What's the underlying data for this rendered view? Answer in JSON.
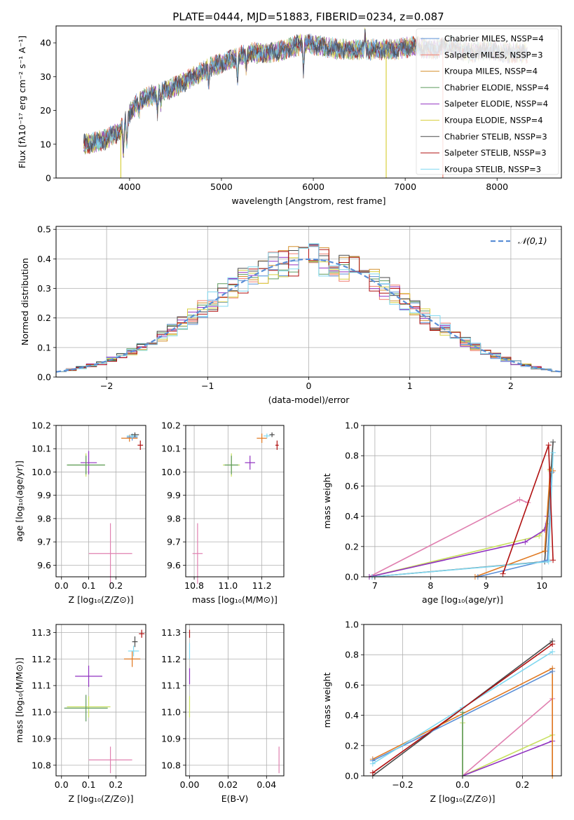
{
  "figure_title": "PLATE=0444, MJD=51883, FIBERID=0234, z=0.087",
  "colors": {
    "cmiles": "#5b8fd6",
    "smiles": "#f07e6e",
    "kmiles": "#d4902e",
    "celodie": "#5e9a5e",
    "selodie": "#9030c0",
    "kelodie": "#d8d040",
    "cstelib": "#4a4a4a",
    "sstelib": "#b01010",
    "kstelib": "#80d8f0",
    "pink": "#e080b0",
    "lime": "#c8e060",
    "orange": "#e07820"
  },
  "chart_data": [
    {
      "id": "spectrum",
      "type": "line",
      "title": "PLATE=0444, MJD=51883, FIBERID=0234, z=0.087",
      "xlabel": "wavelength [Angstrom, rest frame]",
      "ylabel": "Flux [fλ10⁻¹⁷ erg cm⁻² s⁻¹ A⁻¹]",
      "xlim": [
        3200,
        8700
      ],
      "ylim": [
        0,
        45
      ],
      "xticks": [
        4000,
        5000,
        6000,
        7000,
        8000
      ],
      "yticks": [
        0,
        10,
        20,
        30,
        40
      ],
      "grid": false,
      "legend_position": "top-right",
      "legend": [
        "Chabrier MILES, NSSP=4",
        "Salpeter MILES, NSSP=3",
        "Kroupa MILES, NSSP=4",
        "Chabrier ELODIE, NSSP=4",
        "Salpeter ELODIE, NSSP=4",
        "Kroupa ELODIE, NSSP=4",
        "Chabrier STELIB, NSSP=3",
        "Salpeter STELIB, NSSP=3",
        "Kroupa STELIB, NSSP=3"
      ],
      "continuum": {
        "x": [
          3500,
          3700,
          3900,
          4000,
          4100,
          4300,
          4500,
          4700,
          4900,
          5100,
          5300,
          5500,
          5700,
          5900,
          6100,
          6300,
          6500,
          6700,
          6900,
          7100,
          7300,
          7500,
          7700,
          7900,
          8100,
          8300
        ],
        "y": [
          10,
          11,
          14,
          19,
          23,
          25,
          27,
          30,
          33,
          35,
          37,
          37,
          38,
          40,
          39,
          38,
          38,
          38,
          38,
          39,
          38,
          39,
          37,
          38,
          37,
          37
        ]
      },
      "features": [
        {
          "x": 3934,
          "depth": 9
        },
        {
          "x": 3970,
          "depth": 8
        },
        {
          "x": 4102,
          "depth": 4
        },
        {
          "x": 4304,
          "depth": 5
        },
        {
          "x": 4341,
          "depth": 4
        },
        {
          "x": 4861,
          "depth": 4
        },
        {
          "x": 5175,
          "depth": 7
        },
        {
          "x": 5270,
          "depth": 4
        },
        {
          "x": 5893,
          "depth": 8
        },
        {
          "x": 6563,
          "depth": -5
        }
      ],
      "spikes": [
        {
          "x": 6793,
          "series": 5
        },
        {
          "x": 7410,
          "series": 1
        },
        {
          "x": 3905,
          "series": 5
        }
      ]
    },
    {
      "id": "residuals",
      "type": "histogram",
      "xlabel": "(data-model)/error",
      "ylabel": "Normed distribution",
      "xlim": [
        -2.5,
        2.5
      ],
      "ylim": [
        0,
        0.51
      ],
      "xticks": [
        -2,
        -1,
        0,
        1,
        2
      ],
      "yticks": [
        0.0,
        0.1,
        0.2,
        0.3,
        0.4,
        0.5
      ],
      "grid": true,
      "bin_width": 0.1,
      "legend_position": "top-right",
      "legend": [
        "𝒩(0,1)"
      ]
    },
    {
      "id": "age_vs_Z",
      "type": "scatter",
      "xlabel": "Z [log₁₀(Z/Z⊙)]",
      "ylabel": "age  [log₁₀(age/yr)]",
      "xlim": [
        -0.02,
        0.31
      ],
      "ylim": [
        9.55,
        10.2
      ],
      "xticks": [
        0.0,
        0.1,
        0.2
      ],
      "yticks": [
        9.6,
        9.7,
        9.8,
        9.9,
        10.0,
        10.1,
        10.2
      ],
      "grid": true,
      "points": [
        {
          "c": "pink",
          "x": 0.18,
          "y": 9.65,
          "xe": 0.08,
          "ye": 0.13
        },
        {
          "c": "selodie",
          "x": 0.1,
          "y": 10.04,
          "xe": 0.03,
          "ye": 0.05
        },
        {
          "c": "lime",
          "x": 0.09,
          "y": 10.03,
          "xe": 0.07,
          "ye": 0.05
        },
        {
          "c": "celodie",
          "x": 0.09,
          "y": 10.03,
          "xe": 0.07,
          "ye": 0.04
        },
        {
          "c": "orange",
          "x": 0.25,
          "y": 10.145,
          "xe": 0.03,
          "ye": 0.015
        },
        {
          "c": "cmiles",
          "x": 0.26,
          "y": 10.15,
          "xe": 0.02,
          "ye": 0.015
        },
        {
          "c": "kstelib",
          "x": 0.26,
          "y": 10.155,
          "xe": 0.02,
          "ye": 0.01
        },
        {
          "c": "cstelib",
          "x": 0.27,
          "y": 10.16,
          "xe": 0.015,
          "ye": 0.01
        },
        {
          "c": "sstelib",
          "x": 0.29,
          "y": 10.115,
          "xe": 0.01,
          "ye": 0.02
        }
      ]
    },
    {
      "id": "age_vs_mass",
      "type": "scatter",
      "xlabel": "mass [log₁₀(M/M⊙)]",
      "ylabel": "",
      "xlim": [
        10.75,
        11.33
      ],
      "ylim": [
        9.55,
        10.2
      ],
      "xticks": [
        10.8,
        11.0,
        11.2
      ],
      "yticks": [
        9.6,
        9.7,
        9.8,
        9.9,
        10.0,
        10.1,
        10.2
      ],
      "grid": true,
      "points": [
        {
          "c": "pink",
          "x": 10.82,
          "y": 9.65,
          "xe": 0.03,
          "ye": 0.13
        },
        {
          "c": "selodie",
          "x": 11.13,
          "y": 10.04,
          "xe": 0.03,
          "ye": 0.03
        },
        {
          "c": "lime",
          "x": 11.02,
          "y": 10.03,
          "xe": 0.05,
          "ye": 0.05
        },
        {
          "c": "celodie",
          "x": 11.02,
          "y": 10.03,
          "xe": 0.04,
          "ye": 0.04
        },
        {
          "c": "orange",
          "x": 11.2,
          "y": 10.145,
          "xe": 0.03,
          "ye": 0.02
        },
        {
          "c": "kstelib",
          "x": 11.23,
          "y": 10.155,
          "xe": 0.02,
          "ye": 0.01
        },
        {
          "c": "cstelib",
          "x": 11.26,
          "y": 10.16,
          "xe": 0.015,
          "ye": 0.01
        },
        {
          "c": "sstelib",
          "x": 11.29,
          "y": 10.115,
          "xe": 0.01,
          "ye": 0.02
        }
      ]
    },
    {
      "id": "weight_vs_age",
      "type": "line",
      "xlabel": "age  [log₁₀(age/yr)]",
      "ylabel": "mass weight",
      "xlim": [
        6.8,
        10.35
      ],
      "ylim": [
        0,
        1.0
      ],
      "xticks": [
        7,
        8,
        9,
        10
      ],
      "yticks": [
        0.0,
        0.2,
        0.4,
        0.6,
        0.8,
        1.0
      ],
      "grid": true,
      "series": [
        {
          "c": "pink",
          "x": [
            6.9,
            9.6,
            9.75
          ],
          "y": [
            0.0,
            0.51,
            0.49
          ]
        },
        {
          "c": "lime",
          "x": [
            6.9,
            9.95,
            10.1,
            10.15
          ],
          "y": [
            0.0,
            0.27,
            0.35,
            0.7
          ]
        },
        {
          "c": "selodie",
          "x": [
            6.9,
            9.7,
            10.05,
            10.1
          ],
          "y": [
            0.0,
            0.23,
            0.31,
            0.4
          ]
        },
        {
          "c": "cstelib",
          "x": [
            6.95,
            10.05,
            10.2
          ],
          "y": [
            0.0,
            0.1,
            0.89
          ]
        },
        {
          "c": "orange",
          "x": [
            8.8,
            10.05,
            10.15,
            10.2
          ],
          "y": [
            0.0,
            0.17,
            0.71,
            0.7
          ]
        },
        {
          "c": "cmiles",
          "x": [
            8.85,
            10.1,
            10.18
          ],
          "y": [
            0.0,
            0.11,
            0.69
          ]
        },
        {
          "c": "kstelib",
          "x": [
            6.95,
            10.12,
            10.2
          ],
          "y": [
            0.0,
            0.1,
            0.82
          ]
        },
        {
          "c": "sstelib",
          "x": [
            9.3,
            10.12,
            10.2
          ],
          "y": [
            0.02,
            0.87,
            0.11
          ]
        }
      ]
    },
    {
      "id": "mass_vs_Z",
      "type": "scatter",
      "xlabel": "Z [log₁₀(Z/Z⊙)]",
      "ylabel": "mass [log₁₀(M/M⊙)]",
      "xlim": [
        -0.02,
        0.31
      ],
      "ylim": [
        10.76,
        11.33
      ],
      "xticks": [
        0.0,
        0.1,
        0.2
      ],
      "yticks": [
        10.8,
        10.9,
        11.0,
        11.1,
        11.2,
        11.3
      ],
      "grid": true,
      "points": [
        {
          "c": "pink",
          "x": 0.18,
          "y": 10.82,
          "xe": 0.08,
          "ye": 0.05
        },
        {
          "c": "selodie",
          "x": 0.1,
          "y": 11.135,
          "xe": 0.05,
          "ye": 0.04
        },
        {
          "c": "lime",
          "x": 0.1,
          "y": 11.02,
          "xe": 0.08,
          "ye": 0.04
        },
        {
          "c": "celodie",
          "x": 0.09,
          "y": 11.015,
          "xe": 0.08,
          "ye": 0.05
        },
        {
          "c": "orange",
          "x": 0.26,
          "y": 11.2,
          "xe": 0.03,
          "ye": 0.03
        },
        {
          "c": "kstelib",
          "x": 0.265,
          "y": 11.23,
          "xe": 0.02,
          "ye": 0.02
        },
        {
          "c": "cstelib",
          "x": 0.27,
          "y": 11.265,
          "xe": 0.01,
          "ye": 0.02
        },
        {
          "c": "sstelib",
          "x": 0.295,
          "y": 11.295,
          "xe": 0.01,
          "ye": 0.015
        }
      ]
    },
    {
      "id": "mass_vs_ebv",
      "type": "scatter",
      "xlabel": "E(B-V)",
      "ylabel": "",
      "xlim": [
        -0.002,
        0.049
      ],
      "ylim": [
        10.76,
        11.33
      ],
      "xticks": [
        0.0,
        0.02,
        0.04
      ],
      "yticks": [
        10.8,
        10.9,
        11.0,
        11.1,
        11.2,
        11.3
      ],
      "grid": true,
      "points": [
        {
          "c": "pink",
          "x": 0.0465,
          "y": 10.82,
          "xe": 0.0,
          "ye": 0.05
        },
        {
          "c": "lime",
          "x": 0.0,
          "y": 11.02,
          "xe": 0.0,
          "ye": 0.04
        },
        {
          "c": "selodie",
          "x": 0.0,
          "y": 11.135,
          "xe": 0.0,
          "ye": 0.03
        },
        {
          "c": "kstelib",
          "x": 0.0,
          "y": 11.23,
          "xe": 0.0,
          "ye": 0.03
        },
        {
          "c": "sstelib",
          "x": 0.0,
          "y": 11.295,
          "xe": 0.0,
          "ye": 0.015
        }
      ]
    },
    {
      "id": "weight_vs_Z",
      "type": "line",
      "xlabel": "Z [log₁₀(Z/Z⊙)]",
      "ylabel": "mass weight",
      "xlim": [
        -0.33,
        0.33
      ],
      "ylim": [
        0,
        1.0
      ],
      "xticks": [
        -0.2,
        0.0,
        0.2
      ],
      "yticks": [
        0.0,
        0.2,
        0.4,
        0.6,
        0.8,
        1.0
      ],
      "grid": true,
      "series": [
        {
          "c": "pink",
          "x": [
            0.0,
            0.3,
            0.3
          ],
          "y": [
            0.0,
            0.51,
            0.0
          ]
        },
        {
          "c": "lime",
          "x": [
            0.0,
            0.0,
            0.3,
            0.3
          ],
          "y": [
            0.35,
            0.0,
            0.27,
            0.0
          ]
        },
        {
          "c": "selodie",
          "x": [
            0.0,
            0.3
          ],
          "y": [
            0.0,
            0.23
          ]
        },
        {
          "c": "cstelib",
          "x": [
            -0.3,
            0.3
          ],
          "y": [
            0.0,
            0.89
          ]
        },
        {
          "c": "orange",
          "x": [
            -0.3,
            0.3,
            0.3
          ],
          "y": [
            0.11,
            0.71,
            0.0
          ]
        },
        {
          "c": "cmiles",
          "x": [
            -0.3,
            0.3
          ],
          "y": [
            0.1,
            0.69
          ]
        },
        {
          "c": "kstelib",
          "x": [
            -0.3,
            0.0,
            0.3
          ],
          "y": [
            0.08,
            0.45,
            0.82
          ]
        },
        {
          "c": "sstelib",
          "x": [
            -0.3,
            0.3
          ],
          "y": [
            0.02,
            0.87
          ]
        },
        {
          "c": "celodie",
          "x": [
            0.0,
            0.0
          ],
          "y": [
            0.42,
            0.0
          ]
        }
      ]
    }
  ]
}
